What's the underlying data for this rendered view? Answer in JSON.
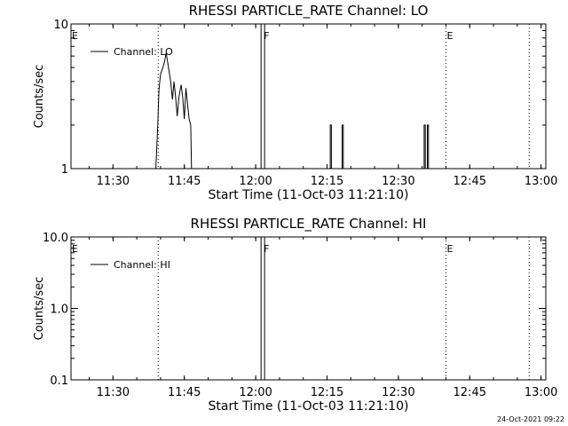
{
  "chart_data": [
    {
      "type": "line",
      "title": "RHESSI PARTICLE_RATE Channel: LO",
      "xlabel": "Start Time (11-Oct-03 11:21:10)",
      "ylabel": "Counts/sec",
      "yscale": "log",
      "ylim": [
        1,
        10
      ],
      "xlim": [
        "11:21:10",
        "13:01:00"
      ],
      "xticks": [
        "11:30",
        "11:45",
        "12:00",
        "12:15",
        "12:30",
        "12:45",
        "13:00"
      ],
      "yticks": [
        "1",
        "10"
      ],
      "legend": {
        "label": "Channel: LO",
        "placement": "top-left"
      },
      "markers": [
        {
          "label": "E",
          "time": "11:21:10",
          "style": "dotted"
        },
        {
          "label": "",
          "time": "11:39:30",
          "style": "dotted"
        },
        {
          "label": "F",
          "time": "12:01:30",
          "style": "solid"
        },
        {
          "label": "E",
          "time": "12:40:00",
          "style": "dotted"
        },
        {
          "label": "",
          "time": "12:57:30",
          "style": "dotted"
        }
      ],
      "series": [
        {
          "name": "Channel: LO",
          "segments": [
            [
              [
                "11:39:00",
                1.0
              ],
              [
                "11:39:25",
                2.0
              ],
              [
                "11:39:40",
                3.5
              ],
              [
                "11:40:00",
                4.5
              ],
              [
                "11:40:30",
                5.0
              ],
              [
                "11:40:50",
                5.5
              ],
              [
                "11:41:10",
                6.3
              ],
              [
                "11:41:30",
                5.4
              ],
              [
                "11:41:50",
                4.6
              ],
              [
                "11:42:10",
                3.9
              ],
              [
                "11:42:30",
                3.0
              ],
              [
                "11:42:50",
                4.0
              ],
              [
                "11:43:10",
                3.1
              ],
              [
                "11:43:30",
                2.3
              ],
              [
                "11:43:50",
                3.1
              ],
              [
                "11:44:20",
                3.8
              ],
              [
                "11:44:40",
                3.1
              ],
              [
                "11:45:00",
                2.2
              ],
              [
                "11:45:20",
                3.6
              ],
              [
                "11:45:40",
                2.8
              ],
              [
                "11:46:00",
                2.2
              ],
              [
                "11:46:20",
                2.0
              ],
              [
                "11:46:30",
                1.0
              ]
            ],
            [
              [
                "12:15:40",
                1.0
              ],
              [
                "12:15:40",
                2.0
              ],
              [
                "12:15:55",
                2.0
              ],
              [
                "12:15:55",
                1.0
              ]
            ],
            [
              [
                "12:18:10",
                1.0
              ],
              [
                "12:18:10",
                2.0
              ],
              [
                "12:18:25",
                2.0
              ],
              [
                "12:18:25",
                1.0
              ]
            ],
            [
              [
                "12:35:25",
                1.0
              ],
              [
                "12:35:25",
                2.0
              ],
              [
                "12:35:40",
                2.0
              ],
              [
                "12:35:40",
                1.0
              ]
            ],
            [
              [
                "12:36:05",
                1.0
              ],
              [
                "12:36:05",
                2.0
              ],
              [
                "12:36:20",
                2.0
              ],
              [
                "12:36:20",
                1.0
              ]
            ]
          ]
        }
      ]
    },
    {
      "type": "line",
      "title": "RHESSI PARTICLE_RATE Channel: HI",
      "xlabel": "Start Time (11-Oct-03 11:21:10)",
      "ylabel": "Counts/sec",
      "yscale": "log",
      "ylim": [
        0.1,
        10
      ],
      "xlim": [
        "11:21:10",
        "13:01:00"
      ],
      "xticks": [
        "11:30",
        "11:45",
        "12:00",
        "12:15",
        "12:30",
        "12:45",
        "13:00"
      ],
      "yticks": [
        "0.1",
        "1.0",
        "10.0"
      ],
      "legend": {
        "label": "Channel: HI",
        "placement": "top-left"
      },
      "markers": [
        {
          "label": "E",
          "time": "11:21:10",
          "style": "dotted"
        },
        {
          "label": "",
          "time": "11:39:30",
          "style": "dotted"
        },
        {
          "label": "F",
          "time": "12:01:30",
          "style": "solid"
        },
        {
          "label": "E",
          "time": "12:40:00",
          "style": "dotted"
        },
        {
          "label": "",
          "time": "12:57:30",
          "style": "dotted"
        }
      ],
      "series": []
    }
  ],
  "footer": {
    "stamp": "24-Oct-2021 09:22"
  }
}
